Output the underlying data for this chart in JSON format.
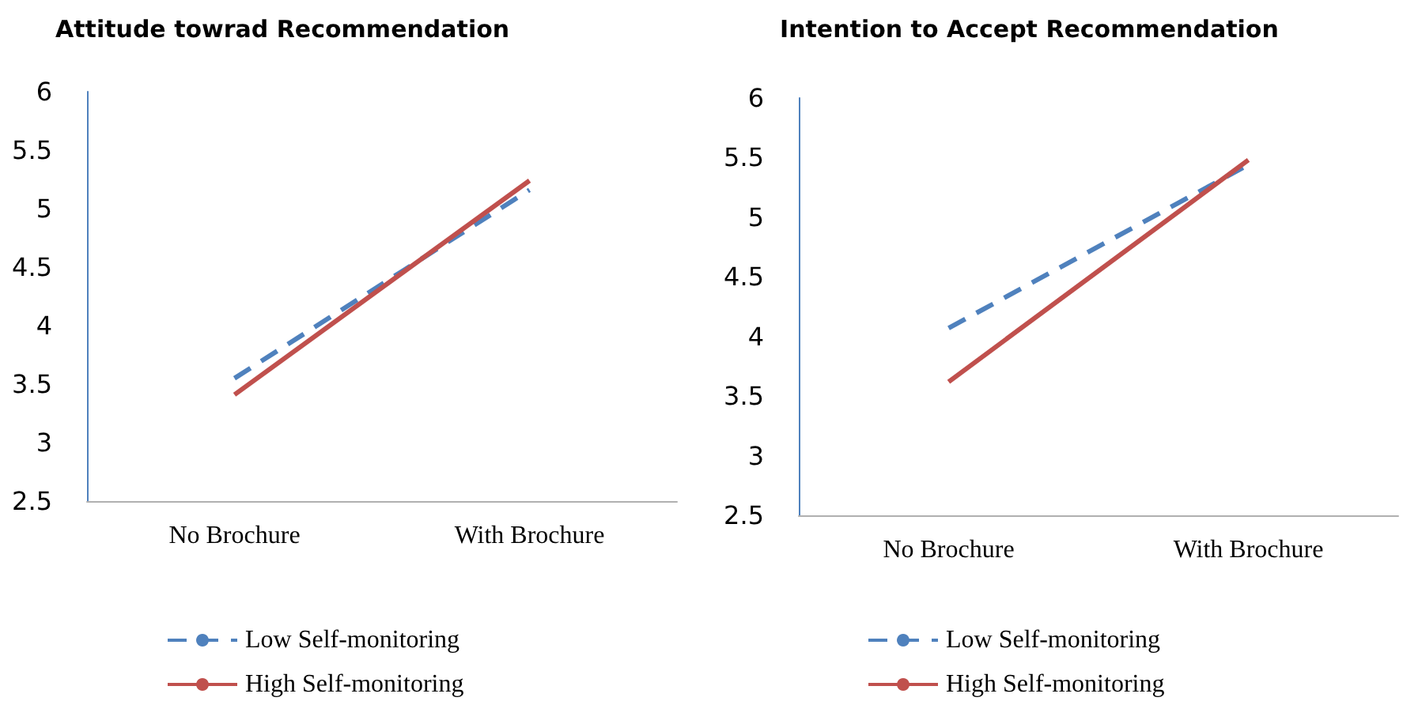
{
  "chart_data": [
    {
      "type": "line",
      "title": "Attitude towrad Recommendation",
      "categories": [
        "No Brochure",
        "With Brochure"
      ],
      "series": [
        {
          "name": "Low Self-monitoring",
          "color": "#4f81bd",
          "values": [
            3.55,
            5.16
          ],
          "line_style": "dashed"
        },
        {
          "name": "High Self-monitoring",
          "color": "#c0504d",
          "values": [
            3.41,
            5.24
          ],
          "line_style": "solid"
        }
      ],
      "ylim": [
        2.5,
        6
      ],
      "yticks": [
        2.5,
        3,
        3.5,
        4,
        4.5,
        5,
        5.5,
        6
      ],
      "grid": false,
      "legend": "bottom",
      "marker": "none"
    },
    {
      "type": "line",
      "title": "Intention to Accept Recommendation",
      "categories": [
        "No Brochure",
        "With Brochure"
      ],
      "series": [
        {
          "name": "Low Self-monitoring",
          "color": "#4f81bd",
          "values": [
            4.07,
            5.44
          ],
          "line_style": "dashed"
        },
        {
          "name": "High Self-monitoring",
          "color": "#c0504d",
          "values": [
            3.62,
            5.48
          ],
          "line_style": "solid"
        }
      ],
      "ylim": [
        2.5,
        6
      ],
      "yticks": [
        2.5,
        3,
        3.5,
        4,
        4.5,
        5,
        5.5,
        6
      ],
      "grid": false,
      "legend": "bottom",
      "marker": "none"
    }
  ]
}
